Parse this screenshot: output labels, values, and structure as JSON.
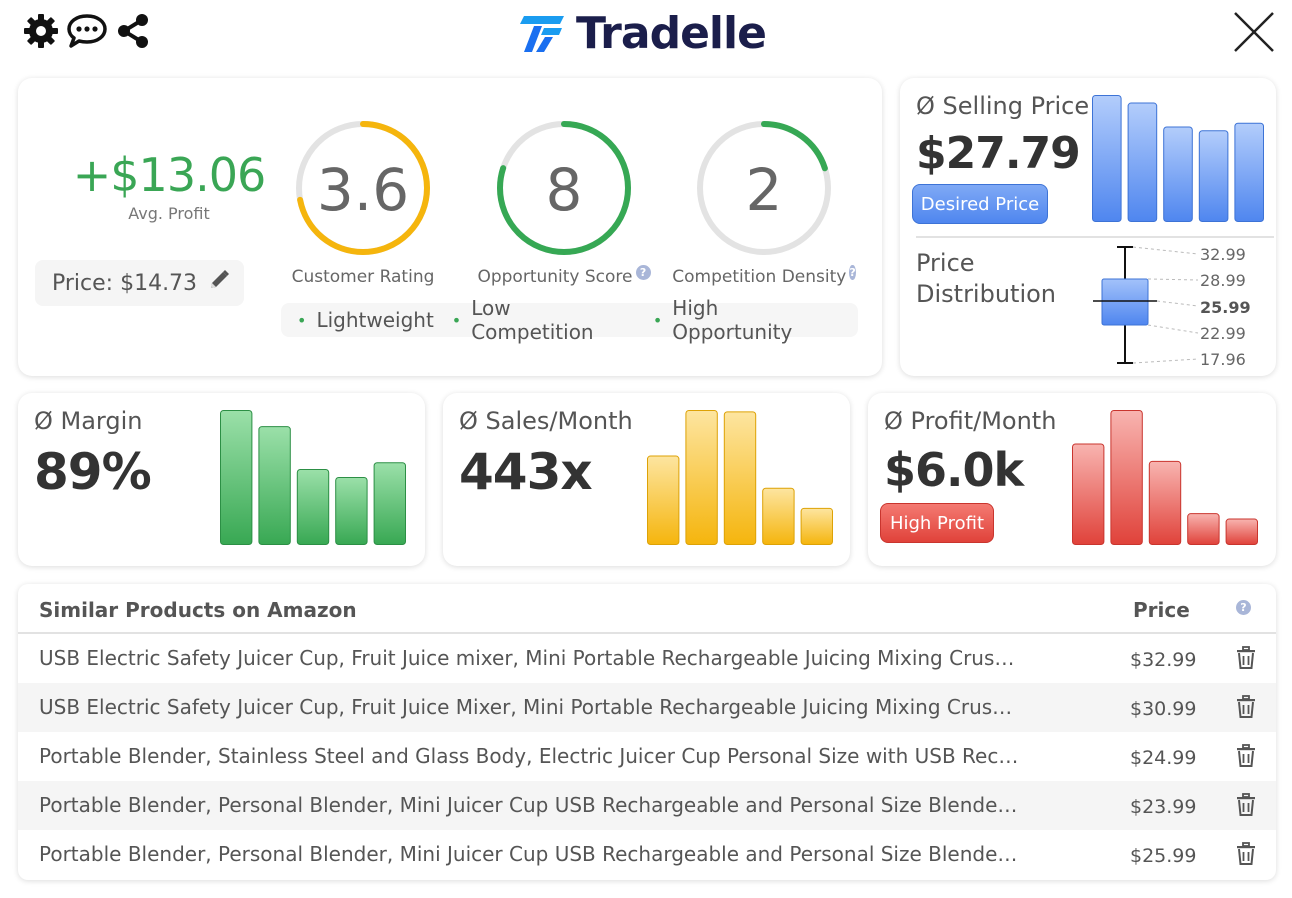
{
  "header": {
    "brand": "Tradelle",
    "icons": [
      "gear-icon",
      "chat-icon",
      "share-icon",
      "close-icon"
    ]
  },
  "summary": {
    "avg_profit_value": "+$13.06",
    "avg_profit_label": "Avg. Profit",
    "price_label": "Price: $14.73",
    "gauges": [
      {
        "value": "3.6",
        "label": "Customer Rating",
        "fraction": 0.72,
        "color": "#f5b50d",
        "help": false
      },
      {
        "value": "8",
        "label": "Opportunity Score",
        "fraction": 0.8,
        "color": "#36a854",
        "help": true
      },
      {
        "value": "2",
        "label": "Competition Density",
        "fraction": 0.2,
        "color": "#36a854",
        "help": true
      }
    ],
    "tags": [
      "Lightweight",
      "Low Competition",
      "High Opportunity"
    ]
  },
  "selling_price": {
    "title": "Ø Selling Price",
    "value": "$27.79",
    "button": "Desired Price",
    "bars": [
      1.0,
      0.94,
      0.75,
      0.72,
      0.78
    ],
    "distribution_title_1": "Price",
    "distribution_title_2": "Distribution",
    "distribution": {
      "max": "32.99",
      "q3": "28.99",
      "median": "25.99",
      "q1": "22.99",
      "min": "17.96"
    }
  },
  "margin": {
    "title": "Ø Margin",
    "value": "89%",
    "bars": [
      1.0,
      0.88,
      0.56,
      0.5,
      0.61
    ]
  },
  "sales": {
    "title": "Ø Sales/Month",
    "value": "443x",
    "bars": [
      0.66,
      1.0,
      0.99,
      0.42,
      0.27
    ]
  },
  "profit_month": {
    "title": "Ø Profit/Month",
    "value": "$6.0k",
    "button": "High Profit",
    "bars": [
      0.75,
      1.0,
      0.62,
      0.23,
      0.19
    ]
  },
  "colors": {
    "accent_green": "#3aa655",
    "accent_blue": "#4f86ef",
    "accent_yellow": "#f5b50d",
    "accent_red": "#e0423a"
  },
  "similar": {
    "title": "Similar Products on Amazon",
    "price_header": "Price",
    "rows": [
      {
        "name": "USB Electric Safety Juicer Cup, Fruit Juice mixer, Mini Portable Rechargeable Juicing Mixing Crush I...",
        "price": "$32.99"
      },
      {
        "name": "USB Electric Safety Juicer Cup, Fruit Juice Mixer, Mini Portable Rechargeable Juicing Mixing Crush I...",
        "price": "$30.99"
      },
      {
        "name": "Portable Blender, Stainless Steel and Glass Body, Electric Juicer Cup Personal Size with USB Recha...",
        "price": "$24.99"
      },
      {
        "name": "Portable Blender, Personal Blender, Mini Juicer Cup USB Rechargeable and Personal Size Blender ...",
        "price": "$23.99"
      },
      {
        "name": "Portable Blender, Personal Blender, Mini Juicer Cup USB Rechargeable and Personal Size Blender ...",
        "price": "$25.99"
      }
    ]
  }
}
